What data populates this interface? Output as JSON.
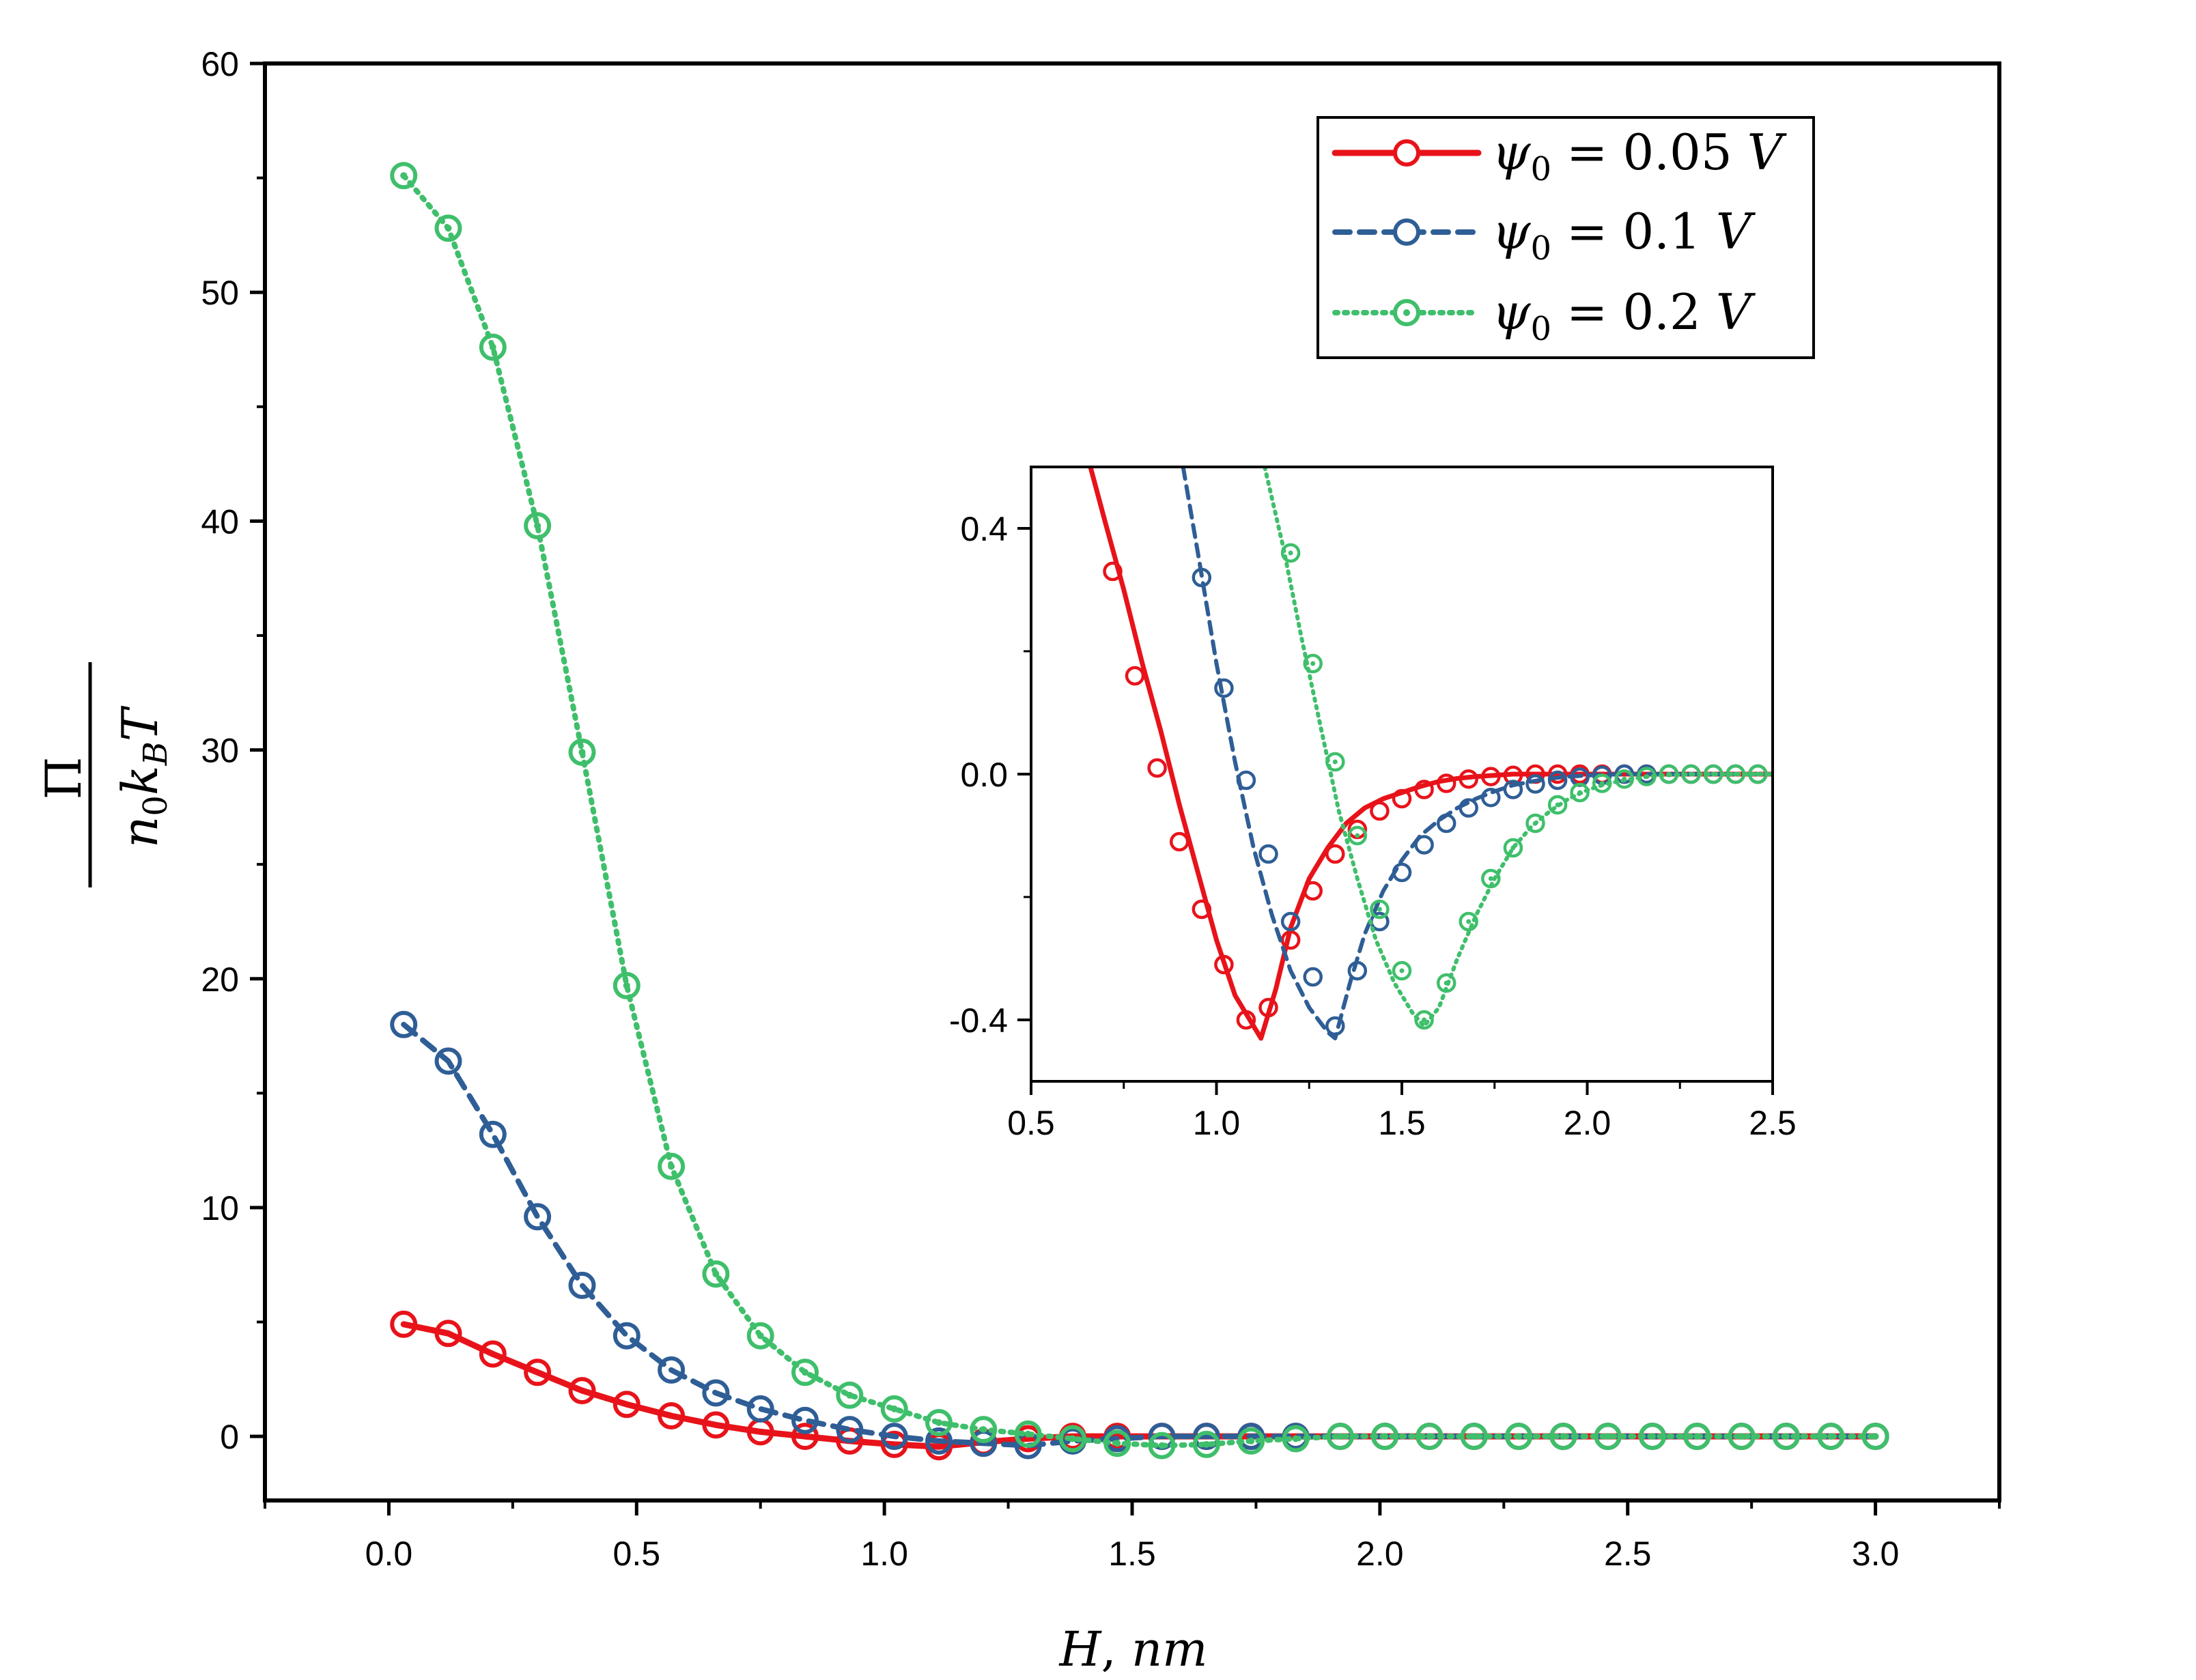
{
  "chart_data": [
    {
      "id": "main",
      "type": "line",
      "xlabel": "H, nm",
      "ylabel": {
        "numerator": "Π",
        "denominator": "n₀k_BT"
      },
      "xlim": [
        -0.25,
        3.25
      ],
      "ylim": [
        -2.8,
        60
      ],
      "xticks": [
        0.0,
        0.5,
        1.0,
        1.5,
        2.0,
        2.5,
        3.0
      ],
      "xtick_labels": [
        "0.0",
        "0.5",
        "1.0",
        "1.5",
        "2.0",
        "2.5",
        "3.0"
      ],
      "yticks": [
        0,
        10,
        20,
        30,
        40,
        50,
        60
      ],
      "ytick_labels": [
        "0",
        "10",
        "20",
        "30",
        "40",
        "50",
        "60"
      ],
      "legend_position": "top-right",
      "series": [
        {
          "name": "ψ0 = 0.05 V",
          "color": "#e8131a",
          "style": "solid",
          "x": [
            0.03,
            0.12,
            0.21,
            0.3,
            0.39,
            0.48,
            0.57,
            0.66,
            0.75,
            0.84,
            0.93,
            1.02,
            1.11,
            1.2,
            1.29,
            1.38,
            1.47,
            1.56,
            1.65,
            1.74,
            1.83,
            1.92,
            2.01,
            2.1,
            2.19,
            2.28,
            2.37,
            2.46,
            2.55,
            2.64,
            2.73,
            2.82,
            2.91,
            3.0
          ],
          "y": [
            4.9,
            4.5,
            3.6,
            2.8,
            2.0,
            1.4,
            0.9,
            0.5,
            0.2,
            0.0,
            -0.2,
            -0.35,
            -0.45,
            -0.25,
            -0.1,
            0.0,
            0.0,
            0.0,
            0.0,
            0.0,
            0.0,
            0.0,
            0.0,
            0.0,
            0.0,
            0.0,
            0.0,
            0.0,
            0.0,
            0.0,
            0.0,
            0.0,
            0.0,
            0.0
          ]
        },
        {
          "name": "ψ0 = 0.1 V",
          "color": "#2f5e96",
          "style": "dashed",
          "x": [
            0.03,
            0.12,
            0.21,
            0.3,
            0.39,
            0.48,
            0.57,
            0.66,
            0.75,
            0.84,
            0.93,
            1.02,
            1.11,
            1.2,
            1.29,
            1.38,
            1.47,
            1.56,
            1.65,
            1.74,
            1.83,
            1.92,
            2.01,
            2.1,
            2.19,
            2.28,
            2.37,
            2.46,
            2.55,
            2.64,
            2.73,
            2.82,
            2.91,
            3.0
          ],
          "y": [
            18.0,
            16.4,
            13.2,
            9.6,
            6.6,
            4.4,
            2.9,
            1.9,
            1.2,
            0.7,
            0.3,
            0.0,
            -0.2,
            -0.3,
            -0.4,
            -0.2,
            -0.1,
            0.0,
            0.0,
            0.0,
            0.0,
            0.0,
            0.0,
            0.0,
            0.0,
            0.0,
            0.0,
            0.0,
            0.0,
            0.0,
            0.0,
            0.0,
            0.0,
            0.0
          ]
        },
        {
          "name": "ψ0 = 0.2 V",
          "color": "#3fbf6b",
          "style": "dotted",
          "x": [
            0.03,
            0.12,
            0.21,
            0.3,
            0.39,
            0.48,
            0.57,
            0.66,
            0.75,
            0.84,
            0.93,
            1.02,
            1.11,
            1.2,
            1.29,
            1.38,
            1.47,
            1.56,
            1.65,
            1.74,
            1.83,
            1.92,
            2.01,
            2.1,
            2.19,
            2.28,
            2.37,
            2.46,
            2.55,
            2.64,
            2.73,
            2.82,
            2.91,
            3.0
          ],
          "y": [
            55.1,
            52.8,
            47.6,
            39.8,
            29.9,
            19.7,
            11.8,
            7.1,
            4.4,
            2.8,
            1.8,
            1.2,
            0.6,
            0.3,
            0.1,
            -0.1,
            -0.3,
            -0.4,
            -0.35,
            -0.2,
            -0.1,
            0.0,
            0.0,
            0.0,
            0.0,
            0.0,
            0.0,
            0.0,
            0.0,
            0.0,
            0.0,
            0.0,
            0.0,
            0.0
          ]
        }
      ]
    },
    {
      "id": "inset",
      "type": "line",
      "xlim": [
        0.5,
        2.5
      ],
      "ylim": [
        -0.5,
        0.5
      ],
      "xticks": [
        0.5,
        1.0,
        1.5,
        2.0,
        2.5
      ],
      "xtick_labels": [
        "0.5",
        "1.0",
        "1.5",
        "2.0",
        "2.5"
      ],
      "yticks": [
        -0.4,
        0.0,
        0.4
      ],
      "ytick_labels": [
        "-0.4",
        "0.0",
        "0.4"
      ],
      "series": [
        {
          "name": "ψ0 = 0.05 V",
          "color": "#e8131a",
          "style": "solid",
          "line_x": [
            0.66,
            0.7,
            0.75,
            0.8,
            0.85,
            0.9,
            0.95,
            1.0,
            1.05,
            1.1,
            1.12,
            1.16,
            1.2,
            1.25,
            1.3,
            1.35,
            1.4,
            1.45,
            1.5,
            1.55,
            1.6,
            1.65,
            1.7,
            1.75,
            1.8,
            1.85,
            1.9,
            2.0,
            2.1,
            2.2,
            2.3,
            2.4,
            2.5
          ],
          "line_y": [
            0.5,
            0.41,
            0.3,
            0.18,
            0.07,
            -0.05,
            -0.16,
            -0.27,
            -0.36,
            -0.41,
            -0.43,
            -0.35,
            -0.25,
            -0.17,
            -0.12,
            -0.08,
            -0.055,
            -0.04,
            -0.03,
            -0.02,
            -0.012,
            -0.007,
            -0.004,
            -0.002,
            0.0,
            0.0,
            0.0,
            0.0,
            0.0,
            0.0,
            0.0,
            0.0,
            0.0
          ],
          "marker_x": [
            0.72,
            0.78,
            0.84,
            0.9,
            0.96,
            1.02,
            1.08,
            1.14,
            1.2,
            1.26,
            1.32,
            1.38,
            1.44,
            1.5,
            1.56,
            1.62,
            1.68,
            1.74,
            1.8,
            1.86,
            1.92,
            1.98,
            2.04,
            2.1,
            2.16,
            2.22,
            2.28,
            2.34,
            2.4,
            2.46
          ],
          "marker_y": [
            0.33,
            0.16,
            0.01,
            -0.11,
            -0.22,
            -0.31,
            -0.4,
            -0.38,
            -0.27,
            -0.19,
            -0.13,
            -0.09,
            -0.06,
            -0.04,
            -0.025,
            -0.015,
            -0.008,
            -0.004,
            -0.002,
            0.0,
            0.0,
            0.0,
            0.0,
            0.0,
            0.0,
            0.0,
            0.0,
            0.0,
            0.0,
            0.0
          ]
        },
        {
          "name": "ψ0 = 0.1 V",
          "color": "#2f5e96",
          "style": "dashed",
          "line_x": [
            0.91,
            0.95,
            1.0,
            1.05,
            1.1,
            1.15,
            1.2,
            1.25,
            1.3,
            1.32,
            1.36,
            1.4,
            1.45,
            1.5,
            1.55,
            1.6,
            1.65,
            1.7,
            1.75,
            1.8,
            1.85,
            1.9,
            1.95,
            2.0,
            2.1,
            2.2,
            2.3,
            2.4,
            2.5
          ],
          "line_y": [
            0.5,
            0.36,
            0.18,
            0.02,
            -0.12,
            -0.23,
            -0.32,
            -0.38,
            -0.42,
            -0.43,
            -0.34,
            -0.26,
            -0.19,
            -0.14,
            -0.1,
            -0.075,
            -0.055,
            -0.04,
            -0.028,
            -0.018,
            -0.012,
            -0.007,
            -0.004,
            -0.002,
            0.0,
            0.0,
            0.0,
            0.0,
            0.0
          ],
          "marker_x": [
            0.96,
            1.02,
            1.08,
            1.14,
            1.2,
            1.26,
            1.32,
            1.38,
            1.44,
            1.5,
            1.56,
            1.62,
            1.68,
            1.74,
            1.8,
            1.86,
            1.92,
            1.98,
            2.04,
            2.1,
            2.16,
            2.22,
            2.28,
            2.34,
            2.4,
            2.46
          ],
          "marker_y": [
            0.32,
            0.14,
            -0.01,
            -0.13,
            -0.24,
            -0.33,
            -0.41,
            -0.32,
            -0.24,
            -0.16,
            -0.115,
            -0.08,
            -0.055,
            -0.038,
            -0.025,
            -0.016,
            -0.01,
            -0.005,
            -0.002,
            0.0,
            0.0,
            0.0,
            0.0,
            0.0,
            0.0,
            0.0
          ]
        },
        {
          "name": "ψ0 = 0.2 V",
          "color": "#3fbf6b",
          "style": "dotted",
          "line_x": [
            1.13,
            1.18,
            1.23,
            1.28,
            1.33,
            1.38,
            1.43,
            1.48,
            1.53,
            1.56,
            1.6,
            1.65,
            1.7,
            1.75,
            1.8,
            1.85,
            1.9,
            1.95,
            2.0,
            2.05,
            2.1,
            2.15,
            2.2,
            2.3,
            2.4,
            2.5
          ],
          "line_y": [
            0.5,
            0.37,
            0.22,
            0.08,
            -0.06,
            -0.17,
            -0.27,
            -0.34,
            -0.39,
            -0.41,
            -0.38,
            -0.3,
            -0.23,
            -0.17,
            -0.12,
            -0.085,
            -0.06,
            -0.04,
            -0.026,
            -0.016,
            -0.01,
            -0.005,
            -0.002,
            0.0,
            0.0,
            0.0
          ],
          "marker_x": [
            1.2,
            1.26,
            1.32,
            1.38,
            1.44,
            1.5,
            1.56,
            1.62,
            1.68,
            1.74,
            1.8,
            1.86,
            1.92,
            1.98,
            2.04,
            2.1,
            2.16,
            2.22,
            2.28,
            2.34,
            2.4,
            2.46
          ],
          "marker_y": [
            0.36,
            0.18,
            0.02,
            -0.1,
            -0.22,
            -0.32,
            -0.4,
            -0.34,
            -0.24,
            -0.17,
            -0.12,
            -0.08,
            -0.05,
            -0.03,
            -0.015,
            -0.008,
            -0.004,
            0.0,
            0.0,
            0.0,
            0.0,
            0.0
          ]
        }
      ]
    }
  ],
  "legend": {
    "entries": [
      {
        "symbol": "ψ",
        "subscript": "0",
        "equals": "=",
        "value": "0.05",
        "unit": "V"
      },
      {
        "symbol": "ψ",
        "subscript": "0",
        "equals": "=",
        "value": "0.1",
        "unit": "V"
      },
      {
        "symbol": "ψ",
        "subscript": "0",
        "equals": "=",
        "value": "0.2",
        "unit": "V"
      }
    ]
  },
  "axis_text": {
    "xlabel_var": "H",
    "xlabel_unit": "nm",
    "ylabel_num": "Π",
    "ylabel_den_n": "n",
    "ylabel_den_sub0": "0",
    "ylabel_den_k": "k",
    "ylabel_den_subB": "B",
    "ylabel_den_T": "T"
  }
}
